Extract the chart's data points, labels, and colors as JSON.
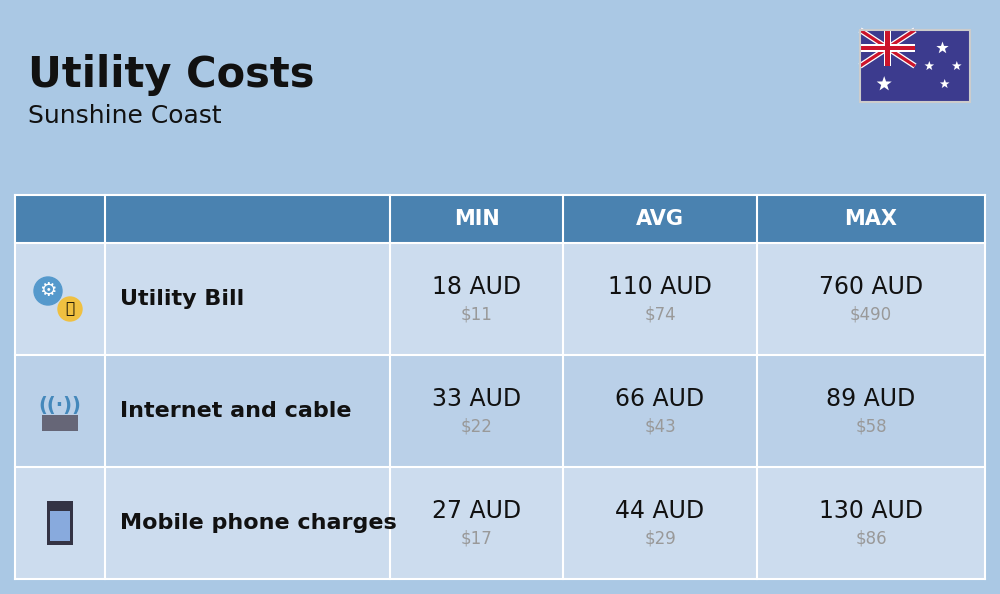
{
  "title": "Utility Costs",
  "subtitle": "Sunshine Coast",
  "background_color": "#aac8e4",
  "header_color": "#4a82b0",
  "header_text_color": "#ffffff",
  "row_colors": [
    "#ccdcee",
    "#bad0e8"
  ],
  "col_headers": [
    "MIN",
    "AVG",
    "MAX"
  ],
  "rows": [
    {
      "label": "Utility Bill",
      "min_aud": "18 AUD",
      "min_usd": "$11",
      "avg_aud": "110 AUD",
      "avg_usd": "$74",
      "max_aud": "760 AUD",
      "max_usd": "$490",
      "icon": "utility"
    },
    {
      "label": "Internet and cable",
      "min_aud": "33 AUD",
      "min_usd": "$22",
      "avg_aud": "66 AUD",
      "avg_usd": "$43",
      "max_aud": "89 AUD",
      "max_usd": "$58",
      "icon": "internet"
    },
    {
      "label": "Mobile phone charges",
      "min_aud": "27 AUD",
      "min_usd": "$17",
      "avg_aud": "44 AUD",
      "avg_usd": "$29",
      "max_aud": "130 AUD",
      "max_usd": "$86",
      "icon": "mobile"
    }
  ],
  "title_fontsize": 30,
  "subtitle_fontsize": 18,
  "header_fontsize": 15,
  "cell_aud_fontsize": 17,
  "cell_usd_fontsize": 12,
  "label_fontsize": 16,
  "usd_color": "#999999",
  "text_color": "#111111",
  "flag_blue": "#3c3b8e",
  "flag_red": "#cc142b",
  "flag_white": "#ffffff"
}
